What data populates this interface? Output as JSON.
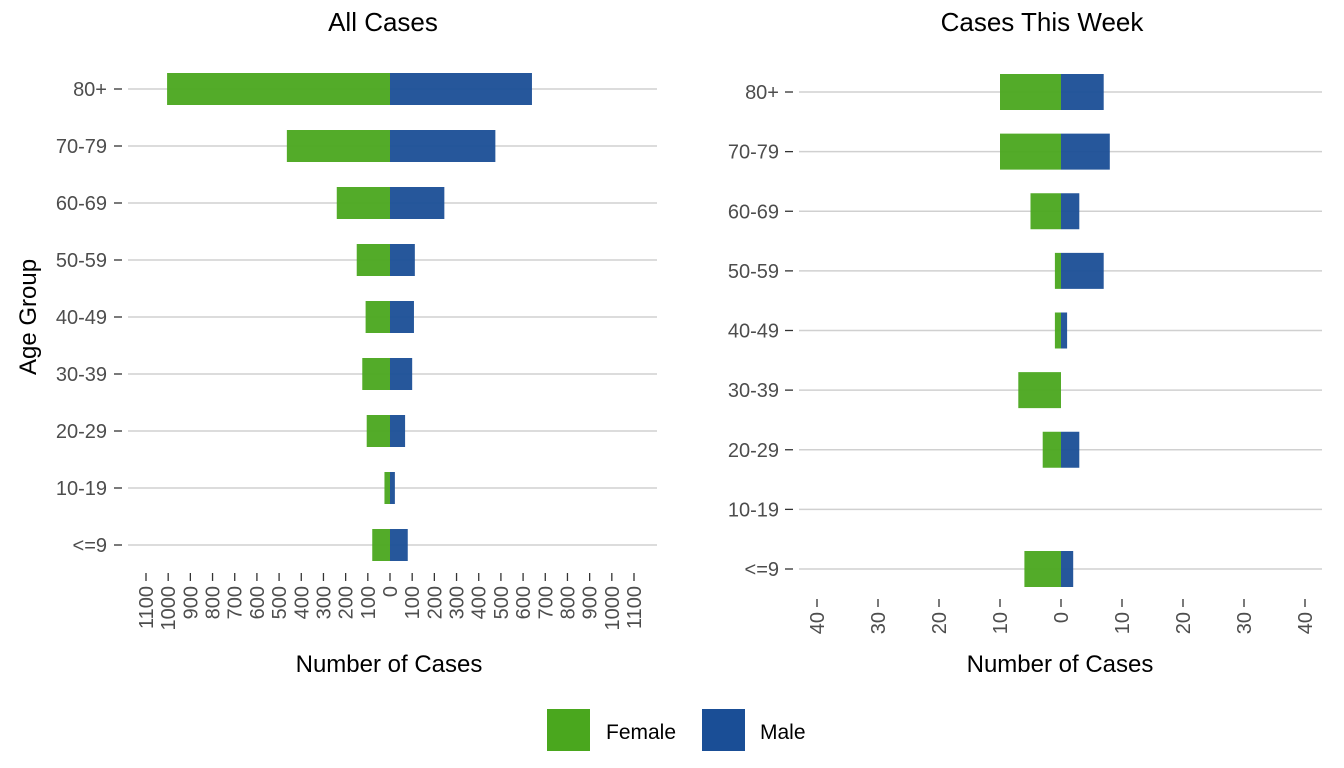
{
  "chart_data": [
    {
      "type": "bar",
      "orientation": "horizontal-pyramid",
      "title": "All Cases",
      "xlabel": "Number of Cases",
      "ylabel": "Age Group",
      "categories": [
        "<=9",
        "10-19",
        "20-29",
        "30-39",
        "40-49",
        "50-59",
        "60-69",
        "70-79",
        "80+"
      ],
      "series": [
        {
          "name": "Female",
          "values": [
            80,
            25,
            105,
            125,
            110,
            150,
            240,
            465,
            1005
          ]
        },
        {
          "name": "Male",
          "values": [
            80,
            22,
            68,
            100,
            108,
            112,
            245,
            475,
            640
          ]
        }
      ],
      "xlim": [
        -1100,
        1100
      ],
      "xticks": [
        -1100,
        -1000,
        -900,
        -800,
        -700,
        -600,
        -500,
        -400,
        -300,
        -200,
        -100,
        0,
        100,
        200,
        300,
        400,
        500,
        600,
        700,
        800,
        900,
        1000,
        1100
      ],
      "xtick_labels": [
        "1100",
        "1000",
        "900",
        "800",
        "700",
        "600",
        "500",
        "400",
        "300",
        "200",
        "100",
        "0",
        "100",
        "200",
        "300",
        "400",
        "500",
        "600",
        "700",
        "800",
        "900",
        "1000",
        "1100"
      ],
      "grid": "horizontal"
    },
    {
      "type": "bar",
      "orientation": "horizontal-pyramid",
      "title": "Cases This Week",
      "xlabel": "Number of Cases",
      "ylabel": "",
      "categories": [
        "<=9",
        "10-19",
        "20-29",
        "30-39",
        "40-49",
        "50-59",
        "60-69",
        "70-79",
        "80+"
      ],
      "series": [
        {
          "name": "Female",
          "values": [
            6,
            0,
            3,
            7,
            1,
            1,
            5,
            10,
            10
          ]
        },
        {
          "name": "Male",
          "values": [
            2,
            0,
            3,
            0,
            1,
            7,
            3,
            8,
            7
          ]
        }
      ],
      "xlim": [
        -40,
        40
      ],
      "xticks": [
        -40,
        -30,
        -20,
        -10,
        0,
        10,
        20,
        30,
        40
      ],
      "xtick_labels": [
        "40",
        "30",
        "20",
        "10",
        "0",
        "10",
        "20",
        "30",
        "40"
      ],
      "grid": "horizontal"
    }
  ],
  "legend": {
    "position": "bottom",
    "items": [
      {
        "label": "Female",
        "color": "#4aa71e"
      },
      {
        "label": "Male",
        "color": "#1a4e96"
      }
    ]
  },
  "colors": {
    "female": "#4aa71e",
    "male": "#1a4e96"
  }
}
